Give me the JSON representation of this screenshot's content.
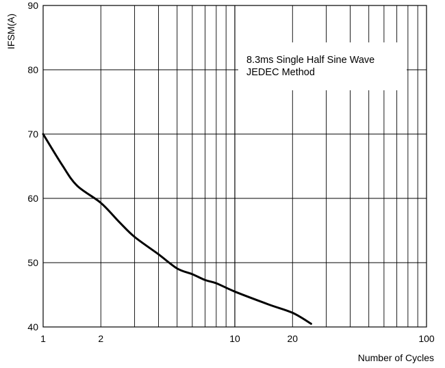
{
  "chart_data": {
    "type": "line",
    "x_scale": "log",
    "xlim": [
      1,
      100
    ],
    "ylim": [
      40,
      90
    ],
    "grid": true,
    "ylabel": "IFSM(A)",
    "xlabel": "Number of Cycles",
    "x_ticks": [
      1,
      2,
      10,
      20,
      100
    ],
    "y_ticks": [
      40,
      50,
      60,
      70,
      80,
      90
    ],
    "annotation": [
      "8.3ms Single Half Sine Wave",
      "JEDEC Method"
    ],
    "series": [
      {
        "x": [
          1,
          1.25,
          1.5,
          2,
          2.5,
          3,
          4,
          5,
          6,
          7,
          8,
          10,
          15,
          20,
          25
        ],
        "y": [
          70,
          65.3,
          62.0,
          59.3,
          56.3,
          54.0,
          51.3,
          49.1,
          48.2,
          47.3,
          46.8,
          45.5,
          43.5,
          42.2,
          40.5
        ]
      }
    ]
  }
}
